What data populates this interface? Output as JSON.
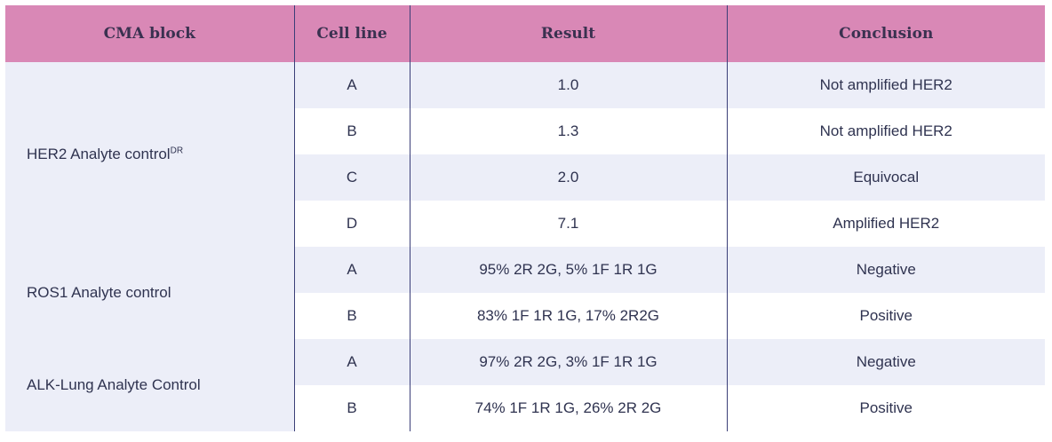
{
  "headers": {
    "cma_block": "CMA block",
    "cell_line": "Cell line",
    "result": "Result",
    "conclusion": "Conclusion"
  },
  "blocks": [
    {
      "name": "HER2 Analyte control",
      "superscript": "DR",
      "rows": [
        {
          "cell_line": "A",
          "result": "1.0",
          "conclusion": "Not amplified HER2"
        },
        {
          "cell_line": "B",
          "result": "1.3",
          "conclusion": "Not amplified HER2"
        },
        {
          "cell_line": "C",
          "result": "2.0",
          "conclusion": "Equivocal"
        },
        {
          "cell_line": "D",
          "result": "7.1",
          "conclusion": "Amplified HER2"
        }
      ]
    },
    {
      "name": "ROS1 Analyte control",
      "rows": [
        {
          "cell_line": "A",
          "result": "95% 2R 2G, 5% 1F 1R 1G",
          "conclusion": "Negative"
        },
        {
          "cell_line": "B",
          "result": "83% 1F 1R 1G, 17% 2R2G",
          "conclusion": "Positive"
        }
      ]
    },
    {
      "name": "ALK-Lung Analyte Control",
      "rows": [
        {
          "cell_line": "A",
          "result": "97% 2R 2G, 3% 1F 1R 1G",
          "conclusion": "Negative"
        },
        {
          "cell_line": "B",
          "result": "74% 1F 1R 1G, 26% 2R 2G",
          "conclusion": "Positive"
        }
      ]
    }
  ]
}
